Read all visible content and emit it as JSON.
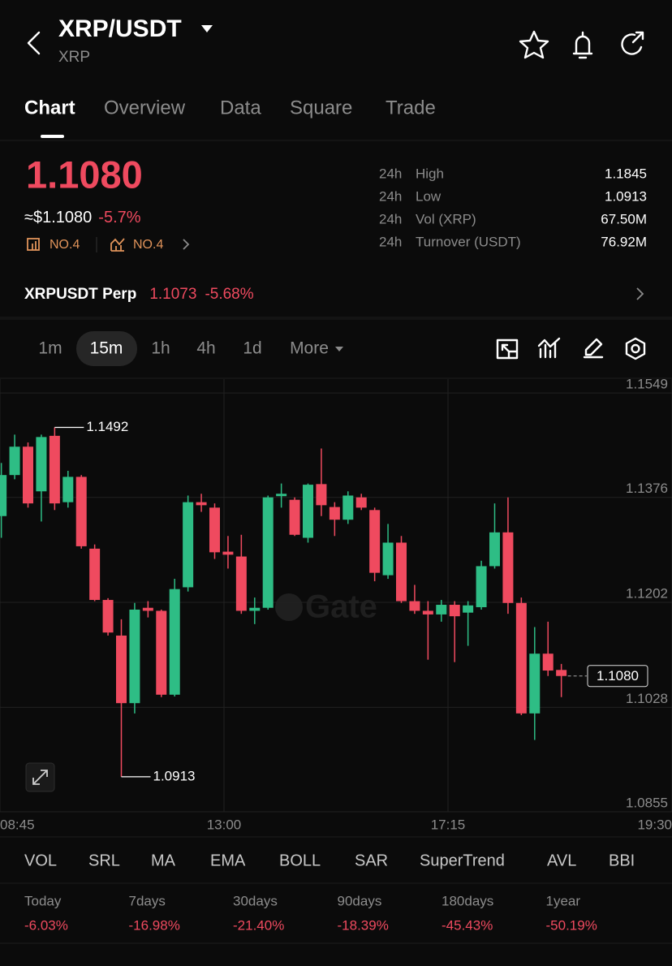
{
  "header": {
    "title": "XRP/USDT",
    "subtitle": "XRP"
  },
  "tabs": [
    "Chart",
    "Overview",
    "Data",
    "Square",
    "Trade"
  ],
  "price": {
    "last": "1.1080",
    "usd": "≈$1.1080",
    "change": "-5.7%",
    "rank_market": "NO.4",
    "rank_trend": "NO.4"
  },
  "stats": [
    {
      "period": "24h",
      "label": "High",
      "value": "1.1845"
    },
    {
      "period": "24h",
      "label": "Low",
      "value": "1.0913"
    },
    {
      "period": "24h",
      "label": "Vol (XRP)",
      "value": "67.50M"
    },
    {
      "period": "24h",
      "label": "Turnover (USDT)",
      "value": "76.92M"
    }
  ],
  "perp": {
    "name": "XRPUSDT Perp",
    "price": "1.1073",
    "change": "-5.68%"
  },
  "intervals": [
    "1m",
    "15m",
    "1h",
    "4h",
    "1d",
    "More"
  ],
  "chart_data": {
    "type": "candlestick",
    "watermark": "Gate",
    "up_color": "#2ebd85",
    "down_color": "#ef4a5f",
    "grid": true,
    "open": [
      1.1345,
      1.1413,
      1.146,
      1.1386,
      1.1478,
      1.1368,
      1.141,
      1.1291,
      1.1206,
      1.1147,
      1.1035,
      1.1193,
      1.1188,
      1.1049,
      1.1227,
      1.1368,
      1.1359,
      1.1286,
      1.1278,
      1.1188,
      1.1193,
      1.1378,
      1.1372,
      1.1309,
      1.1398,
      1.136,
      1.1339,
      1.1376,
      1.1355,
      1.1247,
      1.1301,
      1.1204,
      1.1188,
      1.1182,
      1.1198,
      1.1185,
      1.1194,
      1.1262,
      1.1318,
      1.1201,
      1.1018,
      1.1117,
      1.109
    ],
    "high": [
      1.1433,
      1.148,
      1.1467,
      1.148,
      1.1492,
      1.142,
      1.1413,
      1.1298,
      1.1209,
      1.1174,
      1.1201,
      1.1204,
      1.119,
      1.1241,
      1.1379,
      1.1382,
      1.1366,
      1.1312,
      1.1314,
      1.121,
      1.1379,
      1.1399,
      1.1376,
      1.1399,
      1.1457,
      1.1368,
      1.1386,
      1.1382,
      1.1359,
      1.1332,
      1.1312,
      1.1231,
      1.1204,
      1.1206,
      1.1204,
      1.1204,
      1.1271,
      1.1366,
      1.1376,
      1.121,
      1.1161,
      1.117,
      1.11
    ],
    "low": [
      1.1309,
      1.1406,
      1.1359,
      1.1336,
      1.1355,
      1.1359,
      1.1291,
      1.1204,
      1.1147,
      1.0913,
      1.1018,
      1.1177,
      1.1045,
      1.1046,
      1.122,
      1.1352,
      1.1274,
      1.1258,
      1.1183,
      1.1166,
      1.119,
      1.1359,
      1.1312,
      1.1301,
      1.1345,
      1.1312,
      1.1332,
      1.1355,
      1.1237,
      1.1241,
      1.1201,
      1.1183,
      1.1107,
      1.117,
      1.1103,
      1.113,
      1.119,
      1.1258,
      1.1183,
      1.1015,
      1.0974,
      1.108,
      1.1045
    ],
    "close": [
      1.1413,
      1.146,
      1.1366,
      1.1476,
      1.1366,
      1.141,
      1.1295,
      1.1206,
      1.1152,
      1.1035,
      1.119,
      1.1188,
      1.1049,
      1.1224,
      1.1368,
      1.1363,
      1.1285,
      1.1281,
      1.1188,
      1.1193,
      1.1376,
      1.1382,
      1.1314,
      1.1397,
      1.1363,
      1.1339,
      1.1379,
      1.1359,
      1.1251,
      1.1301,
      1.1204,
      1.1188,
      1.1182,
      1.1198,
      1.1179,
      1.1197,
      1.1262,
      1.1318,
      1.1201,
      1.1018,
      1.1117,
      1.1089,
      1.108
    ],
    "xlim": [
      -0.1,
      50.3
    ],
    "xticks": [
      {
        "value": -0.1,
        "label": "08:45"
      },
      {
        "value": 16.7,
        "label": "13:00"
      },
      {
        "value": 33.5,
        "label": "17:15"
      },
      {
        "value": 50.3,
        "label": "19:30"
      }
    ],
    "ylim": [
      1.0855,
      1.1572
    ],
    "yticks": [
      1.0855,
      1.1028,
      1.1202,
      1.1376,
      1.1549
    ],
    "annotations": [
      {
        "value": 1.1492,
        "label": "1.1492",
        "kind": "high"
      },
      {
        "value": 1.0913,
        "label": "1.0913",
        "kind": "low"
      }
    ],
    "last_price": {
      "value": 1.108,
      "label": "1.1080"
    }
  },
  "indicators": [
    "VOL",
    "SRL",
    "MA",
    "EMA",
    "BOLL",
    "SAR",
    "SuperTrend",
    "AVL",
    "BBI"
  ],
  "performance": [
    {
      "period": "Today",
      "change": "-6.03%"
    },
    {
      "period": "7days",
      "change": "-16.98%"
    },
    {
      "period": "30days",
      "change": "-21.40%"
    },
    {
      "period": "90days",
      "change": "-18.39%"
    },
    {
      "period": "180days",
      "change": "-45.43%"
    },
    {
      "period": "1year",
      "change": "-50.19%"
    }
  ]
}
